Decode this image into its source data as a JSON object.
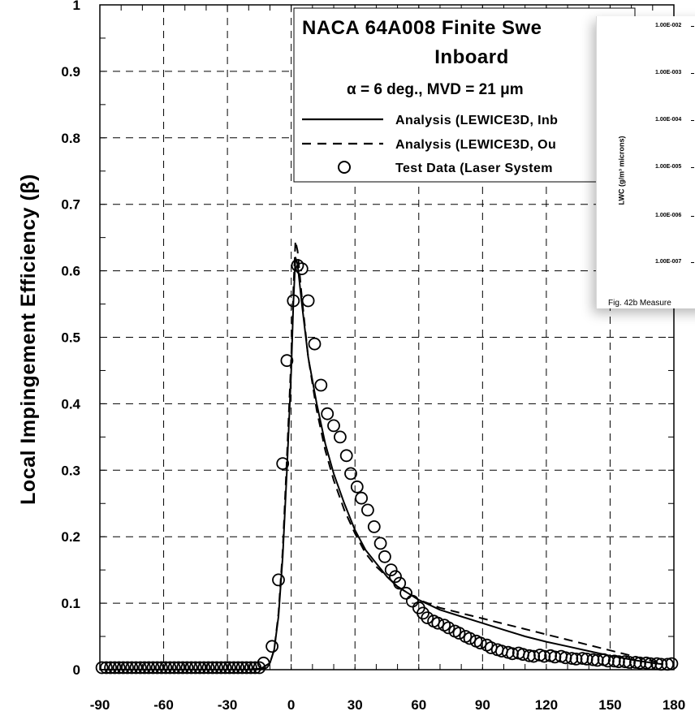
{
  "chart_data": {
    "type": "scatter",
    "title": "NACA 64A008 Finite Swe",
    "subtitle": "Inboard",
    "condition_label": "α = 6 deg., MVD = 21 μm",
    "xlabel": "",
    "ylabel": "Local Impingement Efficiency (β)",
    "xlim": [
      -90,
      180
    ],
    "ylim": [
      0,
      1
    ],
    "x_ticks": [
      "-90",
      "-60",
      "-30",
      "0",
      "30",
      "60",
      "90",
      "120",
      "150",
      "180"
    ],
    "y_ticks": [
      "0",
      "0.1",
      "0.2",
      "0.3",
      "0.4",
      "0.5",
      "0.6",
      "0.7",
      "0.8",
      "0.9",
      "1"
    ],
    "grid": true,
    "grid_style": "dashed",
    "legend_position": "top-right",
    "series": [
      {
        "name": "Analysis (LEWICE3D, Inb",
        "kind": "line",
        "style": "solid",
        "x": [
          -90,
          -20,
          -14,
          -10,
          -8,
          -6,
          -4,
          -2,
          0,
          1,
          2,
          3,
          5,
          8,
          12,
          16,
          20,
          25,
          30,
          35,
          40,
          45,
          50,
          55,
          60,
          70,
          80,
          90,
          100,
          110,
          120,
          130,
          140,
          150,
          160,
          170,
          175
        ],
        "y": [
          0.0,
          0.0,
          0.002,
          0.01,
          0.03,
          0.08,
          0.17,
          0.3,
          0.45,
          0.55,
          0.62,
          0.61,
          0.55,
          0.47,
          0.4,
          0.34,
          0.295,
          0.25,
          0.21,
          0.18,
          0.16,
          0.14,
          0.125,
          0.115,
          0.105,
          0.09,
          0.08,
          0.07,
          0.06,
          0.05,
          0.042,
          0.035,
          0.028,
          0.021,
          0.015,
          0.01,
          0.008
        ]
      },
      {
        "name": "Analysis (LEWICE3D, Ou",
        "kind": "line",
        "style": "dashed",
        "x": [
          -90,
          -20,
          -14,
          -10,
          -8,
          -6,
          -4,
          -2,
          0,
          1,
          2,
          3,
          5,
          8,
          12,
          16,
          20,
          25,
          30,
          35,
          40,
          45,
          50,
          55,
          60,
          70,
          80,
          90,
          100,
          110,
          120,
          130,
          140,
          150,
          160,
          170,
          175
        ],
        "y": [
          0.0,
          0.0,
          0.002,
          0.01,
          0.03,
          0.085,
          0.18,
          0.32,
          0.47,
          0.57,
          0.645,
          0.63,
          0.56,
          0.47,
          0.39,
          0.33,
          0.285,
          0.24,
          0.205,
          0.175,
          0.155,
          0.14,
          0.125,
          0.115,
          0.105,
          0.093,
          0.085,
          0.077,
          0.069,
          0.061,
          0.053,
          0.045,
          0.037,
          0.029,
          0.021,
          0.013,
          0.009
        ]
      },
      {
        "name": "Test Data (Laser System",
        "kind": "marker",
        "marker": "open-circle",
        "x": [
          -89,
          -87,
          -85,
          -83,
          -81,
          -79,
          -77,
          -75,
          -73,
          -71,
          -69,
          -67,
          -65,
          -63,
          -61,
          -59,
          -57,
          -55,
          -53,
          -51,
          -49,
          -47,
          -45,
          -43,
          -41,
          -39,
          -37,
          -35,
          -33,
          -31,
          -29,
          -27,
          -25,
          -23,
          -21,
          -19,
          -17,
          -15,
          -13,
          -9,
          -6,
          -4,
          -2,
          1,
          3,
          5,
          8,
          11,
          14,
          17,
          20,
          23,
          26,
          28,
          31,
          33,
          36,
          39,
          42,
          44,
          47,
          49,
          51,
          54,
          57,
          60,
          62,
          64,
          67,
          69,
          72,
          74,
          77,
          79,
          82,
          84,
          87,
          89,
          92,
          94,
          97,
          99,
          102,
          104,
          107,
          109,
          112,
          114,
          117,
          119,
          122,
          124,
          127,
          129,
          132,
          134,
          137,
          139,
          142,
          144,
          147,
          149,
          152,
          154,
          157,
          159,
          162,
          164,
          167,
          169,
          172,
          174,
          177,
          179
        ],
        "y": [
          0.003,
          0.003,
          0.003,
          0.003,
          0.003,
          0.003,
          0.003,
          0.003,
          0.003,
          0.003,
          0.003,
          0.003,
          0.003,
          0.003,
          0.003,
          0.003,
          0.003,
          0.003,
          0.003,
          0.003,
          0.003,
          0.003,
          0.003,
          0.003,
          0.003,
          0.003,
          0.003,
          0.003,
          0.003,
          0.003,
          0.003,
          0.003,
          0.003,
          0.003,
          0.003,
          0.003,
          0.003,
          0.003,
          0.01,
          0.035,
          0.135,
          0.31,
          0.465,
          0.555,
          0.608,
          0.603,
          0.555,
          0.49,
          0.428,
          0.385,
          0.367,
          0.35,
          0.322,
          0.295,
          0.275,
          0.258,
          0.24,
          0.215,
          0.19,
          0.17,
          0.15,
          0.14,
          0.13,
          0.115,
          0.103,
          0.093,
          0.085,
          0.078,
          0.073,
          0.07,
          0.067,
          0.063,
          0.058,
          0.055,
          0.05,
          0.047,
          0.043,
          0.04,
          0.037,
          0.033,
          0.03,
          0.028,
          0.026,
          0.024,
          0.025,
          0.023,
          0.021,
          0.02,
          0.022,
          0.02,
          0.021,
          0.019,
          0.02,
          0.018,
          0.017,
          0.016,
          0.017,
          0.016,
          0.015,
          0.014,
          0.015,
          0.013,
          0.013,
          0.012,
          0.012,
          0.011,
          0.011,
          0.01,
          0.01,
          0.009,
          0.009,
          0.008,
          0.008,
          0.009
        ]
      }
    ]
  },
  "overlay": {
    "y_ticks": [
      "1.00E-002",
      "1.00E-003",
      "1.00E-004",
      "1.00E-005",
      "1.00E-006",
      "1.00E-007"
    ],
    "ylabel": "LWC (g/m³ microns)",
    "caption": "Fig. 42b  Measure"
  }
}
